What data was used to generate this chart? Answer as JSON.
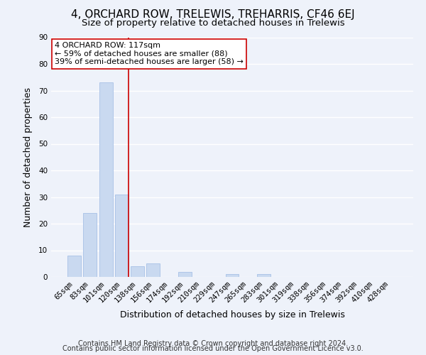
{
  "title": "4, ORCHARD ROW, TRELEWIS, TREHARRIS, CF46 6EJ",
  "subtitle": "Size of property relative to detached houses in Trelewis",
  "xlabel": "Distribution of detached houses by size in Trelewis",
  "ylabel": "Number of detached properties",
  "bar_labels": [
    "65sqm",
    "83sqm",
    "101sqm",
    "120sqm",
    "138sqm",
    "156sqm",
    "174sqm",
    "192sqm",
    "210sqm",
    "229sqm",
    "247sqm",
    "265sqm",
    "283sqm",
    "301sqm",
    "319sqm",
    "338sqm",
    "356sqm",
    "374sqm",
    "392sqm",
    "410sqm",
    "428sqm"
  ],
  "bar_values": [
    8,
    24,
    73,
    31,
    4,
    5,
    0,
    2,
    0,
    0,
    1,
    0,
    1,
    0,
    0,
    0,
    0,
    0,
    0,
    0,
    0
  ],
  "bar_color": "#c9d9f0",
  "bar_edge_color": "#aec6e8",
  "vline_color": "#cc0000",
  "vline_x_index": 3,
  "annotation_text": "4 ORCHARD ROW: 117sqm\n← 59% of detached houses are smaller (88)\n39% of semi-detached houses are larger (58) →",
  "annotation_box_color": "#ffffff",
  "annotation_box_edge": "#cc0000",
  "ylim": [
    0,
    90
  ],
  "yticks": [
    0,
    10,
    20,
    30,
    40,
    50,
    60,
    70,
    80,
    90
  ],
  "footer_line1": "Contains HM Land Registry data © Crown copyright and database right 2024.",
  "footer_line2": "Contains public sector information licensed under the Open Government Licence v3.0.",
  "background_color": "#eef2fa",
  "plot_background_color": "#eef2fa",
  "grid_color": "#ffffff",
  "title_fontsize": 11,
  "subtitle_fontsize": 9.5,
  "axis_label_fontsize": 9,
  "tick_fontsize": 7.5,
  "annotation_fontsize": 8,
  "footer_fontsize": 7
}
